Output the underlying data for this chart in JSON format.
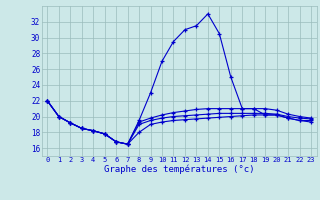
{
  "title": "Graphe des températures (°c)",
  "x_labels": [
    "0",
    "1",
    "2",
    "3",
    "4",
    "5",
    "6",
    "7",
    "8",
    "9",
    "10",
    "11",
    "12",
    "13",
    "14",
    "15",
    "16",
    "17",
    "18",
    "19",
    "20",
    "21",
    "22",
    "23"
  ],
  "x_values": [
    0,
    1,
    2,
    3,
    4,
    5,
    6,
    7,
    8,
    9,
    10,
    11,
    12,
    13,
    14,
    15,
    16,
    17,
    18,
    19,
    20,
    21,
    22,
    23
  ],
  "ylim": [
    15.0,
    34.0
  ],
  "yticks": [
    16,
    18,
    20,
    22,
    24,
    26,
    28,
    30,
    32
  ],
  "background_color": "#cce8e8",
  "line_color": "#0000cc",
  "series": {
    "temp_main": [
      22.0,
      20.0,
      19.2,
      18.5,
      18.2,
      17.8,
      16.8,
      16.5,
      19.5,
      23.0,
      27.0,
      29.5,
      31.0,
      31.5,
      33.0,
      30.5,
      25.0,
      21.0,
      21.0,
      20.2,
      20.2,
      19.8,
      19.5,
      19.5
    ],
    "temp_line2": [
      22.0,
      20.0,
      19.2,
      18.5,
      18.2,
      17.8,
      16.8,
      16.5,
      18.0,
      19.0,
      19.3,
      19.5,
      19.6,
      19.7,
      19.8,
      19.9,
      20.0,
      20.1,
      20.2,
      20.2,
      20.2,
      19.8,
      19.5,
      19.3
    ],
    "temp_line3": [
      22.0,
      20.0,
      19.2,
      18.5,
      18.2,
      17.8,
      16.8,
      16.5,
      19.0,
      19.5,
      19.8,
      20.0,
      20.1,
      20.2,
      20.3,
      20.4,
      20.4,
      20.4,
      20.4,
      20.4,
      20.3,
      20.0,
      19.8,
      19.7
    ],
    "temp_line4": [
      22.0,
      20.0,
      19.2,
      18.5,
      18.2,
      17.8,
      16.8,
      16.5,
      19.3,
      19.8,
      20.2,
      20.5,
      20.7,
      20.9,
      21.0,
      21.0,
      21.0,
      21.0,
      21.0,
      21.0,
      20.8,
      20.3,
      20.0,
      19.8
    ]
  }
}
